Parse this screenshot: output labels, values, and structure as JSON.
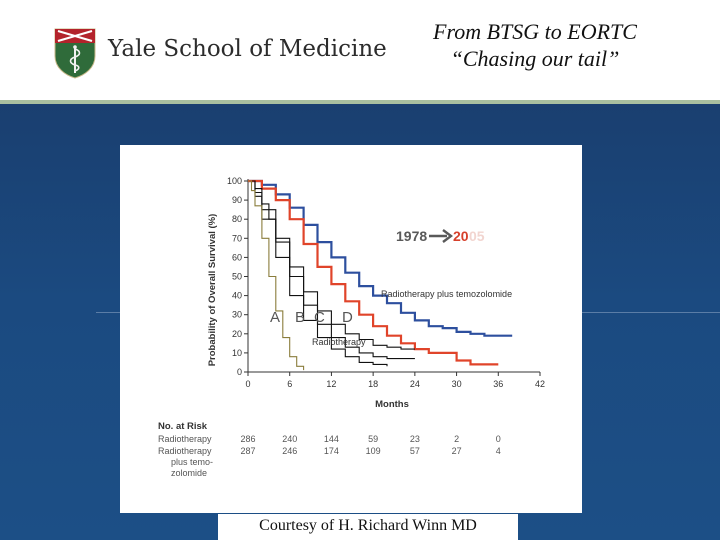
{
  "header": {
    "logo_text": "Yale School of Medicine",
    "title_line1": "From BTSG to EORTC",
    "title_line2": "“Chasing our tail”"
  },
  "credit": "Courtesy of H. Richard Winn MD",
  "colors": {
    "band": "#1b4a80",
    "rt_tmz": "#2d4f9e",
    "rt": "#e0442a",
    "historical": "#111111",
    "old_arm_d": "#8a7d3c",
    "logo_green": "#2f6b3a",
    "logo_red": "#b3232b"
  },
  "chart_data": {
    "type": "line",
    "xlabel": "Months",
    "ylabel": "Probability of Overall Survival (%)",
    "x_ticks": [
      0,
      6,
      12,
      18,
      24,
      30,
      36,
      42
    ],
    "y_ticks": [
      0,
      10,
      20,
      30,
      40,
      50,
      60,
      70,
      80,
      90,
      100
    ],
    "xlim": [
      0,
      42
    ],
    "ylim": [
      0,
      100
    ],
    "series": [
      {
        "name": "Radiotherapy plus temozolomide",
        "color": "#2d4f9e",
        "x": [
          0,
          2,
          4,
          6,
          8,
          10,
          12,
          14,
          16,
          18,
          20,
          22,
          24,
          26,
          28,
          30,
          32,
          34,
          36,
          38
        ],
        "y": [
          100,
          98,
          93,
          86,
          77,
          68,
          60,
          52,
          45,
          40,
          36,
          31,
          27,
          24,
          23,
          21,
          20,
          19,
          19,
          19
        ]
      },
      {
        "name": "Radiotherapy",
        "color": "#e0442a",
        "x": [
          0,
          2,
          4,
          6,
          8,
          10,
          12,
          14,
          16,
          18,
          20,
          22,
          24,
          26,
          28,
          30,
          32,
          34,
          36
        ],
        "y": [
          100,
          96,
          90,
          80,
          67,
          55,
          46,
          37,
          30,
          24,
          19,
          15,
          12,
          10,
          10,
          6,
          4,
          4,
          4
        ]
      },
      {
        "name": "A",
        "color": "#111111",
        "x": [
          0,
          1,
          2,
          3,
          4,
          6,
          8,
          10,
          12,
          14,
          16,
          18,
          20,
          22,
          24
        ],
        "y": [
          100,
          96,
          88,
          80,
          70,
          55,
          42,
          32,
          25,
          20,
          17,
          14,
          13,
          12,
          12
        ]
      },
      {
        "name": "B",
        "color": "#111111",
        "x": [
          0,
          1,
          2,
          4,
          6,
          8,
          10,
          12,
          14,
          16,
          18,
          20,
          22,
          24
        ],
        "y": [
          100,
          94,
          85,
          68,
          50,
          35,
          25,
          18,
          13,
          10,
          8,
          7,
          7,
          7
        ]
      },
      {
        "name": "C",
        "color": "#111111",
        "x": [
          0,
          1,
          2,
          4,
          6,
          8,
          10,
          12,
          14,
          16,
          18,
          20
        ],
        "y": [
          100,
          92,
          80,
          60,
          40,
          27,
          18,
          12,
          8,
          5,
          4,
          3
        ]
      },
      {
        "name": "D",
        "color": "#8a7d3c",
        "x": [
          0,
          0.5,
          1,
          2,
          3,
          4,
          5,
          6,
          7,
          8
        ],
        "y": [
          100,
          95,
          87,
          70,
          50,
          32,
          18,
          8,
          3,
          1
        ]
      }
    ],
    "labels": {
      "rt_tmz": "Radiotherapy plus temozolomide",
      "rt": "Radiotherapy",
      "a": "A",
      "b": "B",
      "c": "C",
      "d": "D",
      "year_from": "1978",
      "year_to": "20",
      "year_to_faded": "05"
    },
    "risk_table": {
      "title": "No. at Risk",
      "rows": [
        {
          "label": "Radiotherapy",
          "values": [
            "286",
            "240",
            "144",
            "59",
            "23",
            "2",
            "0"
          ]
        },
        {
          "label": "Radiotherapy plus temo-zolomide",
          "values": [
            "287",
            "246",
            "174",
            "109",
            "57",
            "27",
            "4"
          ]
        }
      ]
    }
  }
}
